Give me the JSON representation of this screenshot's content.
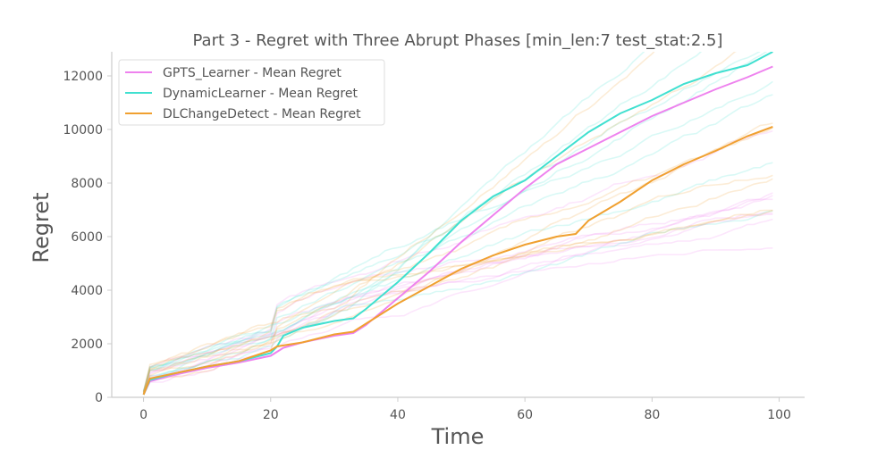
{
  "chart_data": {
    "type": "line",
    "title": "Part 3 - Regret with Three Abrupt Phases [min_len:7 test_stat:2.5]",
    "xlabel": "Time",
    "ylabel": "Regret",
    "xlim": [
      -5,
      104
    ],
    "ylim": [
      0,
      12900
    ],
    "xticks": [
      0,
      20,
      40,
      60,
      80,
      100
    ],
    "yticks": [
      0,
      2000,
      4000,
      6000,
      8000,
      10000,
      12000
    ],
    "grid": false,
    "legend_position": "top-left",
    "series": [
      {
        "name": "GPTS_Learner - Mean Regret",
        "color": "#ee82ee",
        "x": [
          0,
          1,
          5,
          10,
          15,
          20,
          21,
          22,
          25,
          30,
          33,
          35,
          40,
          45,
          50,
          55,
          60,
          65,
          70,
          75,
          80,
          85,
          90,
          95,
          99
        ],
        "values": [
          100,
          600,
          850,
          1100,
          1300,
          1550,
          1700,
          1850,
          2050,
          2300,
          2400,
          2700,
          3700,
          4700,
          5800,
          6800,
          7800,
          8700,
          9300,
          9900,
          10500,
          11000,
          11500,
          11950,
          12350
        ]
      },
      {
        "name": "DynamicLearner - Mean Regret",
        "color": "#40e0d0",
        "x": [
          0,
          1,
          5,
          10,
          15,
          20,
          21,
          22,
          25,
          30,
          33,
          35,
          40,
          45,
          50,
          55,
          60,
          65,
          70,
          75,
          80,
          85,
          90,
          95,
          99
        ],
        "values": [
          100,
          650,
          900,
          1150,
          1350,
          1650,
          1900,
          2300,
          2600,
          2850,
          2950,
          3300,
          4300,
          5400,
          6600,
          7500,
          8100,
          9000,
          9900,
          10600,
          11100,
          11700,
          12100,
          12400,
          12900
        ]
      },
      {
        "name": "DLChangeDetect - Mean Regret",
        "color": "#f0a030",
        "x": [
          0,
          1,
          5,
          10,
          15,
          20,
          21,
          25,
          30,
          33,
          35,
          40,
          45,
          50,
          55,
          60,
          65,
          68,
          70,
          75,
          80,
          85,
          90,
          95,
          99
        ],
        "values": [
          100,
          700,
          900,
          1150,
          1350,
          1750,
          1900,
          2050,
          2350,
          2450,
          2750,
          3500,
          4150,
          4800,
          5300,
          5700,
          6000,
          6100,
          6600,
          7300,
          8100,
          8700,
          9200,
          9750,
          10100
        ]
      }
    ]
  }
}
